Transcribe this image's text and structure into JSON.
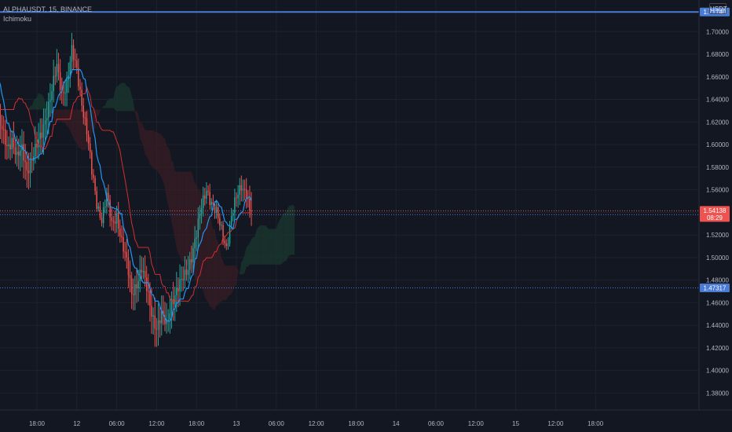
{
  "header": {
    "symbol_line": "ALPHAUSDT, 15, BINANCE",
    "indicator_line": "Ichimoku",
    "currency_button": "USDT"
  },
  "colors": {
    "background": "#131722",
    "grid": "#1e222d",
    "bull": "#26a69a",
    "bear": "#ef5350",
    "conversion": "#2196f3",
    "base": "#d32f2f",
    "cloud_bull": "#1b3a2f",
    "cloud_bear": "#3a1e24",
    "hline": "#4a7bd6"
  },
  "chart_data": {
    "type": "candlestick",
    "x_axis_labels": [
      "18:00",
      "12",
      "06:00",
      "12:00",
      "18:00",
      "13",
      "06:00",
      "12:00",
      "18:00",
      "14",
      "06:00",
      "12:00",
      "15",
      "12:00",
      "18:00"
    ],
    "y_axis_labels": [
      "1.38000",
      "1.40000",
      "1.42000",
      "1.44000",
      "1.46000",
      "1.48000",
      "1.50000",
      "1.52000",
      "1.54000",
      "1.56000",
      "1.58000",
      "1.60000",
      "1.62000",
      "1.64000",
      "1.66000",
      "1.68000",
      "1.70000"
    ],
    "ylim": [
      1.365,
      1.728
    ],
    "bars_per_hour": 4,
    "first_bar_hours_before_first_label": 10,
    "close_path": [
      [
        0,
        1.56
      ],
      [
        3,
        1.595
      ],
      [
        6,
        1.62
      ],
      [
        9,
        1.69
      ],
      [
        11,
        1.672
      ],
      [
        13,
        1.648
      ],
      [
        16,
        1.625
      ],
      [
        19,
        1.612
      ],
      [
        22,
        1.598
      ],
      [
        25,
        1.605
      ],
      [
        28,
        1.588
      ],
      [
        31,
        1.595
      ],
      [
        34,
        1.578
      ],
      [
        37,
        1.588
      ],
      [
        40,
        1.598
      ],
      [
        43,
        1.61
      ],
      [
        46,
        1.63
      ],
      [
        49,
        1.648
      ],
      [
        52,
        1.668
      ],
      [
        55,
        1.645
      ],
      [
        58,
        1.655
      ],
      [
        61,
        1.682
      ],
      [
        64,
        1.665
      ],
      [
        67,
        1.638
      ],
      [
        70,
        1.612
      ],
      [
        73,
        1.575
      ],
      [
        76,
        1.548
      ],
      [
        79,
        1.535
      ],
      [
        82,
        1.555
      ],
      [
        85,
        1.528
      ],
      [
        88,
        1.538
      ],
      [
        91,
        1.515
      ],
      [
        94,
        1.495
      ],
      [
        97,
        1.468
      ],
      [
        100,
        1.478
      ],
      [
        103,
        1.49
      ],
      [
        106,
        1.472
      ],
      [
        109,
        1.452
      ],
      [
        112,
        1.438
      ],
      [
        115,
        1.448
      ],
      [
        118,
        1.44
      ],
      [
        121,
        1.462
      ],
      [
        124,
        1.47
      ],
      [
        127,
        1.478
      ],
      [
        130,
        1.488
      ],
      [
        133,
        1.502
      ],
      [
        136,
        1.52
      ],
      [
        139,
        1.545
      ],
      [
        142,
        1.562
      ],
      [
        145,
        1.548
      ],
      [
        148,
        1.538
      ],
      [
        151,
        1.525
      ],
      [
        154,
        1.51
      ],
      [
        157,
        1.535
      ],
      [
        160,
        1.552
      ],
      [
        163,
        1.565
      ],
      [
        166,
        1.558
      ],
      [
        168,
        1.54
      ],
      [
        169,
        1.541
      ]
    ],
    "latest_bar": {
      "high": 1.558,
      "low": 1.528
    },
    "levels": [
      {
        "value": 1.7174,
        "label": "1.71740",
        "color": "#4a7bd6",
        "style": "solid"
      },
      {
        "value": 1.47317,
        "label": "1.47317",
        "color": "#4a7bd6",
        "style": "dotted"
      },
      {
        "value": 1.53802,
        "label": "1.53802",
        "color": "#4a7bd6",
        "style": "dotted"
      },
      {
        "value": 1.54138,
        "label": "1.54138",
        "color": "#ef5350",
        "style": "dotted"
      }
    ],
    "last_price": {
      "value": 1.54138,
      "label": "1.54138",
      "countdown": "08:29"
    },
    "indicator": "Ichimoku",
    "grid": true
  }
}
